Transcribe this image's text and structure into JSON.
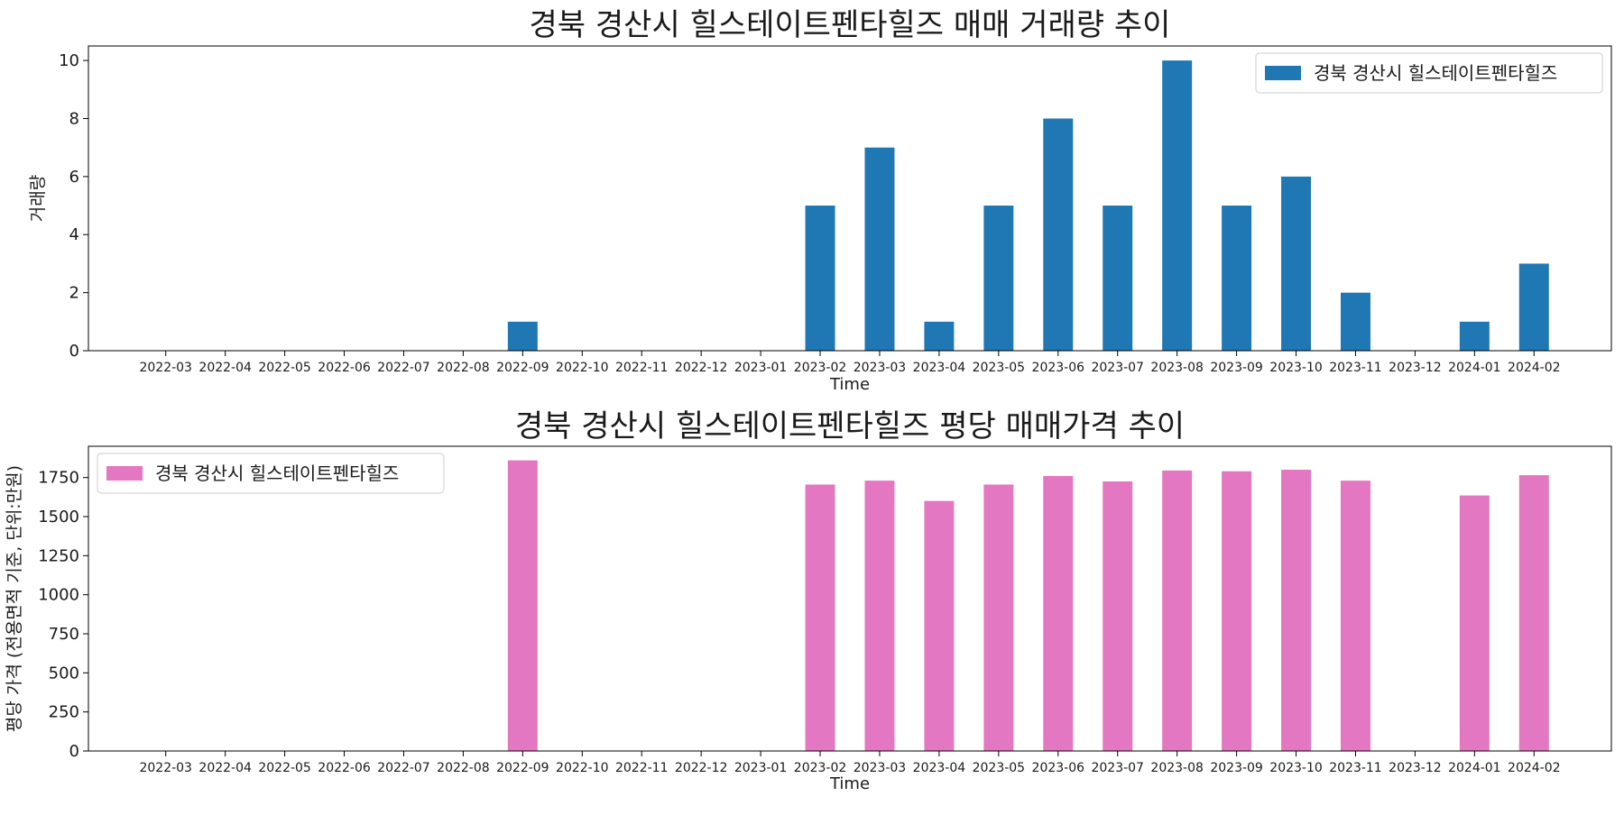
{
  "chart_data": [
    {
      "type": "bar",
      "title": "경북 경산시 힐스테이트펜타힐즈 매매 거래량 추이",
      "xlabel": "Time",
      "ylabel": "거래량",
      "ylim": [
        0,
        10.5
      ],
      "yticks": [
        0,
        2,
        4,
        6,
        8,
        10
      ],
      "legend_position": "upper right",
      "grid": false,
      "color": "#1f77b4",
      "categories": [
        "2022-03",
        "2022-04",
        "2022-05",
        "2022-06",
        "2022-07",
        "2022-08",
        "2022-09",
        "2022-10",
        "2022-11",
        "2022-12",
        "2023-01",
        "2023-02",
        "2023-03",
        "2023-04",
        "2023-05",
        "2023-06",
        "2023-07",
        "2023-08",
        "2023-09",
        "2023-10",
        "2023-11",
        "2023-12",
        "2024-01",
        "2024-02"
      ],
      "series": [
        {
          "name": "경북 경산시 힐스테이트펜타힐즈",
          "values": [
            0,
            0,
            0,
            0,
            0,
            0,
            1,
            0,
            0,
            0,
            0,
            5,
            7,
            1,
            5,
            8,
            5,
            10,
            5,
            6,
            2,
            0,
            1,
            3
          ]
        }
      ]
    },
    {
      "type": "bar",
      "title": "경북 경산시 힐스테이트펜타힐즈 평당 매매가격 추이",
      "xlabel": "Time",
      "ylabel": "평당 가격 (전용면적 기준, 단위:만원)",
      "ylim": [
        0,
        1950
      ],
      "yticks": [
        0,
        250,
        500,
        750,
        1000,
        1250,
        1500,
        1750
      ],
      "legend_position": "upper left",
      "grid": false,
      "color": "#e377c2",
      "categories": [
        "2022-03",
        "2022-04",
        "2022-05",
        "2022-06",
        "2022-07",
        "2022-08",
        "2022-09",
        "2022-10",
        "2022-11",
        "2022-12",
        "2023-01",
        "2023-02",
        "2023-03",
        "2023-04",
        "2023-05",
        "2023-06",
        "2023-07",
        "2023-08",
        "2023-09",
        "2023-10",
        "2023-11",
        "2023-12",
        "2024-01",
        "2024-02"
      ],
      "series": [
        {
          "name": "경북 경산시 힐스테이트펜타힐즈",
          "values": [
            0,
            0,
            0,
            0,
            0,
            0,
            1860,
            0,
            0,
            0,
            0,
            1705,
            1730,
            1600,
            1705,
            1760,
            1725,
            1795,
            1790,
            1800,
            1730,
            0,
            1635,
            1765
          ]
        }
      ]
    }
  ]
}
